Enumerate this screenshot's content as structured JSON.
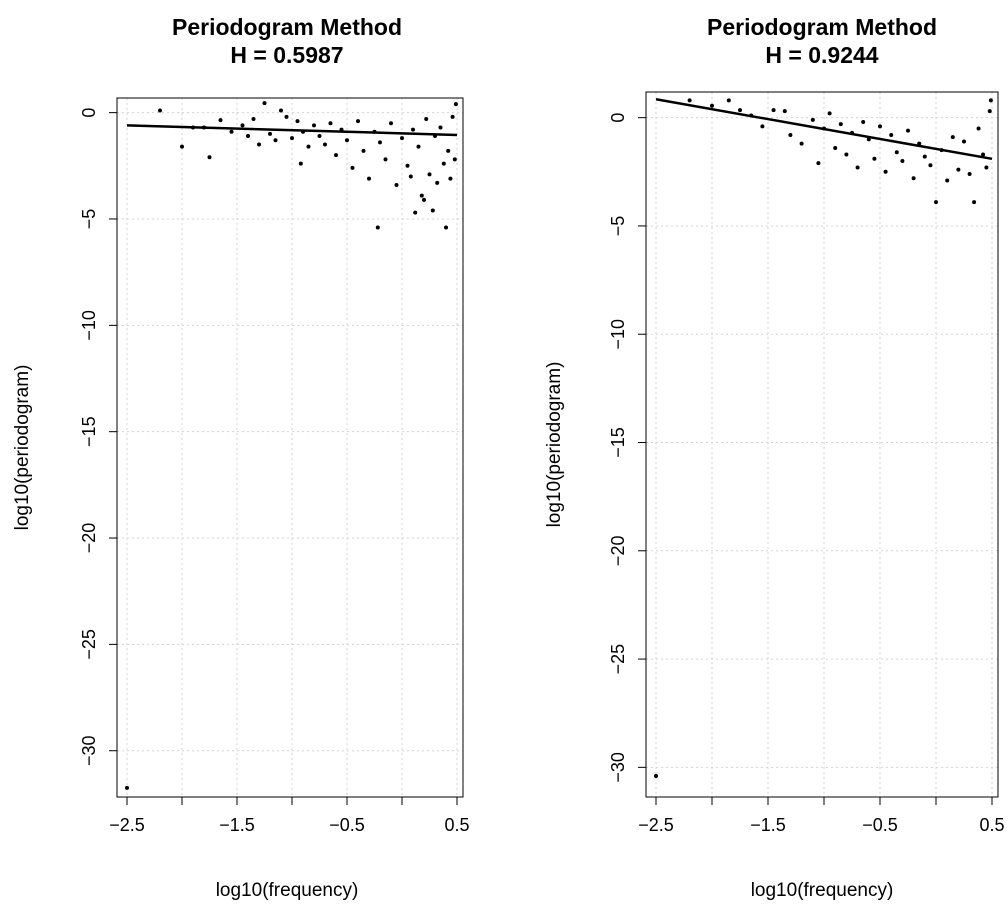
{
  "chart_data": [
    {
      "type": "scatter",
      "title": "Periodogram Method",
      "subtitle": "H = 0.5987",
      "xlabel": "log10(frequency)",
      "ylabel": "log10(periodogram)",
      "xlim": [
        -2.5,
        0.5
      ],
      "ylim": [
        -31.8,
        0.5
      ],
      "xticks": [
        -2.5,
        -2,
        -1.5,
        -1,
        -0.5,
        0,
        0.5
      ],
      "xtick_labels": [
        "−2.5",
        "",
        "−1.5",
        "",
        "−0.5",
        "",
        "0.5"
      ],
      "yticks": [
        0,
        -5,
        -10,
        -15,
        -20,
        -25,
        -30
      ],
      "ytick_labels": [
        "0",
        "−5",
        "−10",
        "−15",
        "−20",
        "−25",
        "−30"
      ],
      "grid": true,
      "fit_line": {
        "x": [
          -2.5,
          0.5
        ],
        "y": [
          -0.6,
          -1.05
        ]
      },
      "points": [
        [
          -2.5,
          -31.75
        ],
        [
          -2.2,
          0.1
        ],
        [
          -2.0,
          -1.6
        ],
        [
          -1.9,
          -0.7
        ],
        [
          -1.8,
          -0.7
        ],
        [
          -1.75,
          -2.1
        ],
        [
          -1.65,
          -0.35
        ],
        [
          -1.55,
          -0.9
        ],
        [
          -1.45,
          -0.6
        ],
        [
          -1.4,
          -1.1
        ],
        [
          -1.35,
          -0.3
        ],
        [
          -1.3,
          -1.5
        ],
        [
          -1.25,
          0.45
        ],
        [
          -1.2,
          -1.0
        ],
        [
          -1.15,
          -1.3
        ],
        [
          -1.1,
          0.1
        ],
        [
          -1.05,
          -0.2
        ],
        [
          -1.0,
          -1.2
        ],
        [
          -0.95,
          -0.4
        ],
        [
          -0.92,
          -2.4
        ],
        [
          -0.9,
          -0.9
        ],
        [
          -0.85,
          -1.6
        ],
        [
          -0.8,
          -0.6
        ],
        [
          -0.75,
          -1.1
        ],
        [
          -0.7,
          -1.5
        ],
        [
          -0.65,
          -0.5
        ],
        [
          -0.6,
          -2.0
        ],
        [
          -0.55,
          -0.8
        ],
        [
          -0.5,
          -1.3
        ],
        [
          -0.45,
          -2.6
        ],
        [
          -0.4,
          -0.4
        ],
        [
          -0.35,
          -1.8
        ],
        [
          -0.3,
          -3.1
        ],
        [
          -0.25,
          -0.9
        ],
        [
          -0.22,
          -5.4
        ],
        [
          -0.2,
          -1.4
        ],
        [
          -0.15,
          -2.2
        ],
        [
          -0.1,
          -0.5
        ],
        [
          -0.05,
          -3.4
        ],
        [
          0.0,
          -1.2
        ],
        [
          0.05,
          -2.5
        ],
        [
          0.08,
          -3.0
        ],
        [
          0.1,
          -0.8
        ],
        [
          0.12,
          -4.7
        ],
        [
          0.15,
          -1.6
        ],
        [
          0.18,
          -3.9
        ],
        [
          0.2,
          -4.1
        ],
        [
          0.22,
          -0.3
        ],
        [
          0.25,
          -2.9
        ],
        [
          0.28,
          -4.6
        ],
        [
          0.3,
          -1.1
        ],
        [
          0.32,
          -3.3
        ],
        [
          0.35,
          -0.7
        ],
        [
          0.38,
          -2.4
        ],
        [
          0.4,
          -5.4
        ],
        [
          0.42,
          -1.8
        ],
        [
          0.44,
          -3.1
        ],
        [
          0.46,
          -0.2
        ],
        [
          0.48,
          -2.2
        ],
        [
          0.49,
          0.4
        ]
      ]
    },
    {
      "type": "scatter",
      "title": "Periodogram Method",
      "subtitle": "H = 0.9244",
      "xlabel": "log10(frequency)",
      "ylabel": "log10(periodogram)",
      "xlim": [
        -2.5,
        0.5
      ],
      "ylim": [
        -31.0,
        1.0
      ],
      "xticks": [
        -2.5,
        -2,
        -1.5,
        -1,
        -0.5,
        0,
        0.5
      ],
      "xtick_labels": [
        "−2.5",
        "",
        "−1.5",
        "",
        "−0.5",
        "",
        "0.5"
      ],
      "yticks": [
        0,
        -5,
        -10,
        -15,
        -20,
        -25,
        -30
      ],
      "ytick_labels": [
        "0",
        "−5",
        "−10",
        "−15",
        "−20",
        "−25",
        "−30"
      ],
      "grid": true,
      "fit_line": {
        "x": [
          -2.5,
          0.5
        ],
        "y": [
          0.85,
          -1.9
        ]
      },
      "points": [
        [
          -2.5,
          -30.4
        ],
        [
          -2.2,
          0.8
        ],
        [
          -2.0,
          0.55
        ],
        [
          -1.85,
          0.8
        ],
        [
          -1.75,
          0.35
        ],
        [
          -1.65,
          0.1
        ],
        [
          -1.55,
          -0.4
        ],
        [
          -1.45,
          0.35
        ],
        [
          -1.35,
          0.3
        ],
        [
          -1.3,
          -0.8
        ],
        [
          -1.2,
          -1.2
        ],
        [
          -1.1,
          -0.1
        ],
        [
          -1.05,
          -2.1
        ],
        [
          -1.0,
          -0.5
        ],
        [
          -0.95,
          0.2
        ],
        [
          -0.9,
          -1.4
        ],
        [
          -0.85,
          -0.3
        ],
        [
          -0.8,
          -1.7
        ],
        [
          -0.75,
          -0.7
        ],
        [
          -0.7,
          -2.3
        ],
        [
          -0.65,
          -0.2
        ],
        [
          -0.6,
          -1.0
        ],
        [
          -0.55,
          -1.9
        ],
        [
          -0.5,
          -0.4
        ],
        [
          -0.45,
          -2.5
        ],
        [
          -0.4,
          -0.8
        ],
        [
          -0.35,
          -1.6
        ],
        [
          -0.3,
          -2.0
        ],
        [
          -0.25,
          -0.6
        ],
        [
          -0.2,
          -2.8
        ],
        [
          -0.15,
          -1.2
        ],
        [
          -0.1,
          -1.8
        ],
        [
          -0.05,
          -2.2
        ],
        [
          0.0,
          -3.9
        ],
        [
          0.05,
          -1.5
        ],
        [
          0.1,
          -2.9
        ],
        [
          0.15,
          -0.9
        ],
        [
          0.2,
          -2.4
        ],
        [
          0.25,
          -1.1
        ],
        [
          0.3,
          -2.6
        ],
        [
          0.34,
          -3.9
        ],
        [
          0.38,
          -0.5
        ],
        [
          0.42,
          -1.7
        ],
        [
          0.45,
          -2.3
        ],
        [
          0.48,
          0.3
        ],
        [
          0.49,
          0.8
        ]
      ]
    }
  ]
}
